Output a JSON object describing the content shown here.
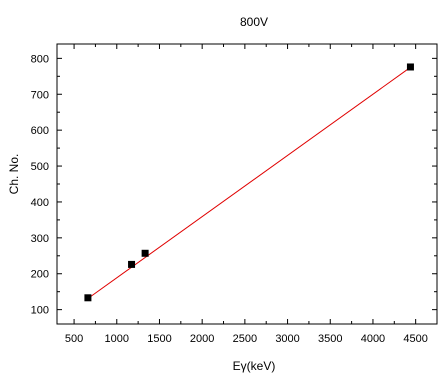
{
  "chart_data": {
    "type": "scatter",
    "title": "800V",
    "xlabel": "Eγ(keV)",
    "ylabel": "Ch. No.",
    "xlim": [
      300,
      4750
    ],
    "ylim": [
      60,
      840
    ],
    "xticks": [
      500,
      1000,
      1500,
      2000,
      2500,
      3000,
      3500,
      4000,
      4500
    ],
    "yticks": [
      100,
      200,
      300,
      400,
      500,
      600,
      700,
      800
    ],
    "grid": false,
    "series": [
      {
        "points": [
          {
            "x": 662,
            "y": 133
          },
          {
            "x": 1173,
            "y": 226
          },
          {
            "x": 1332,
            "y": 257
          },
          {
            "x": 4439,
            "y": 776
          }
        ],
        "marker": "square",
        "marker_color": "#000000"
      }
    ],
    "fit_line": {
      "x": [
        662,
        4439
      ],
      "y": [
        131,
        775
      ],
      "color": "#e00000"
    }
  }
}
